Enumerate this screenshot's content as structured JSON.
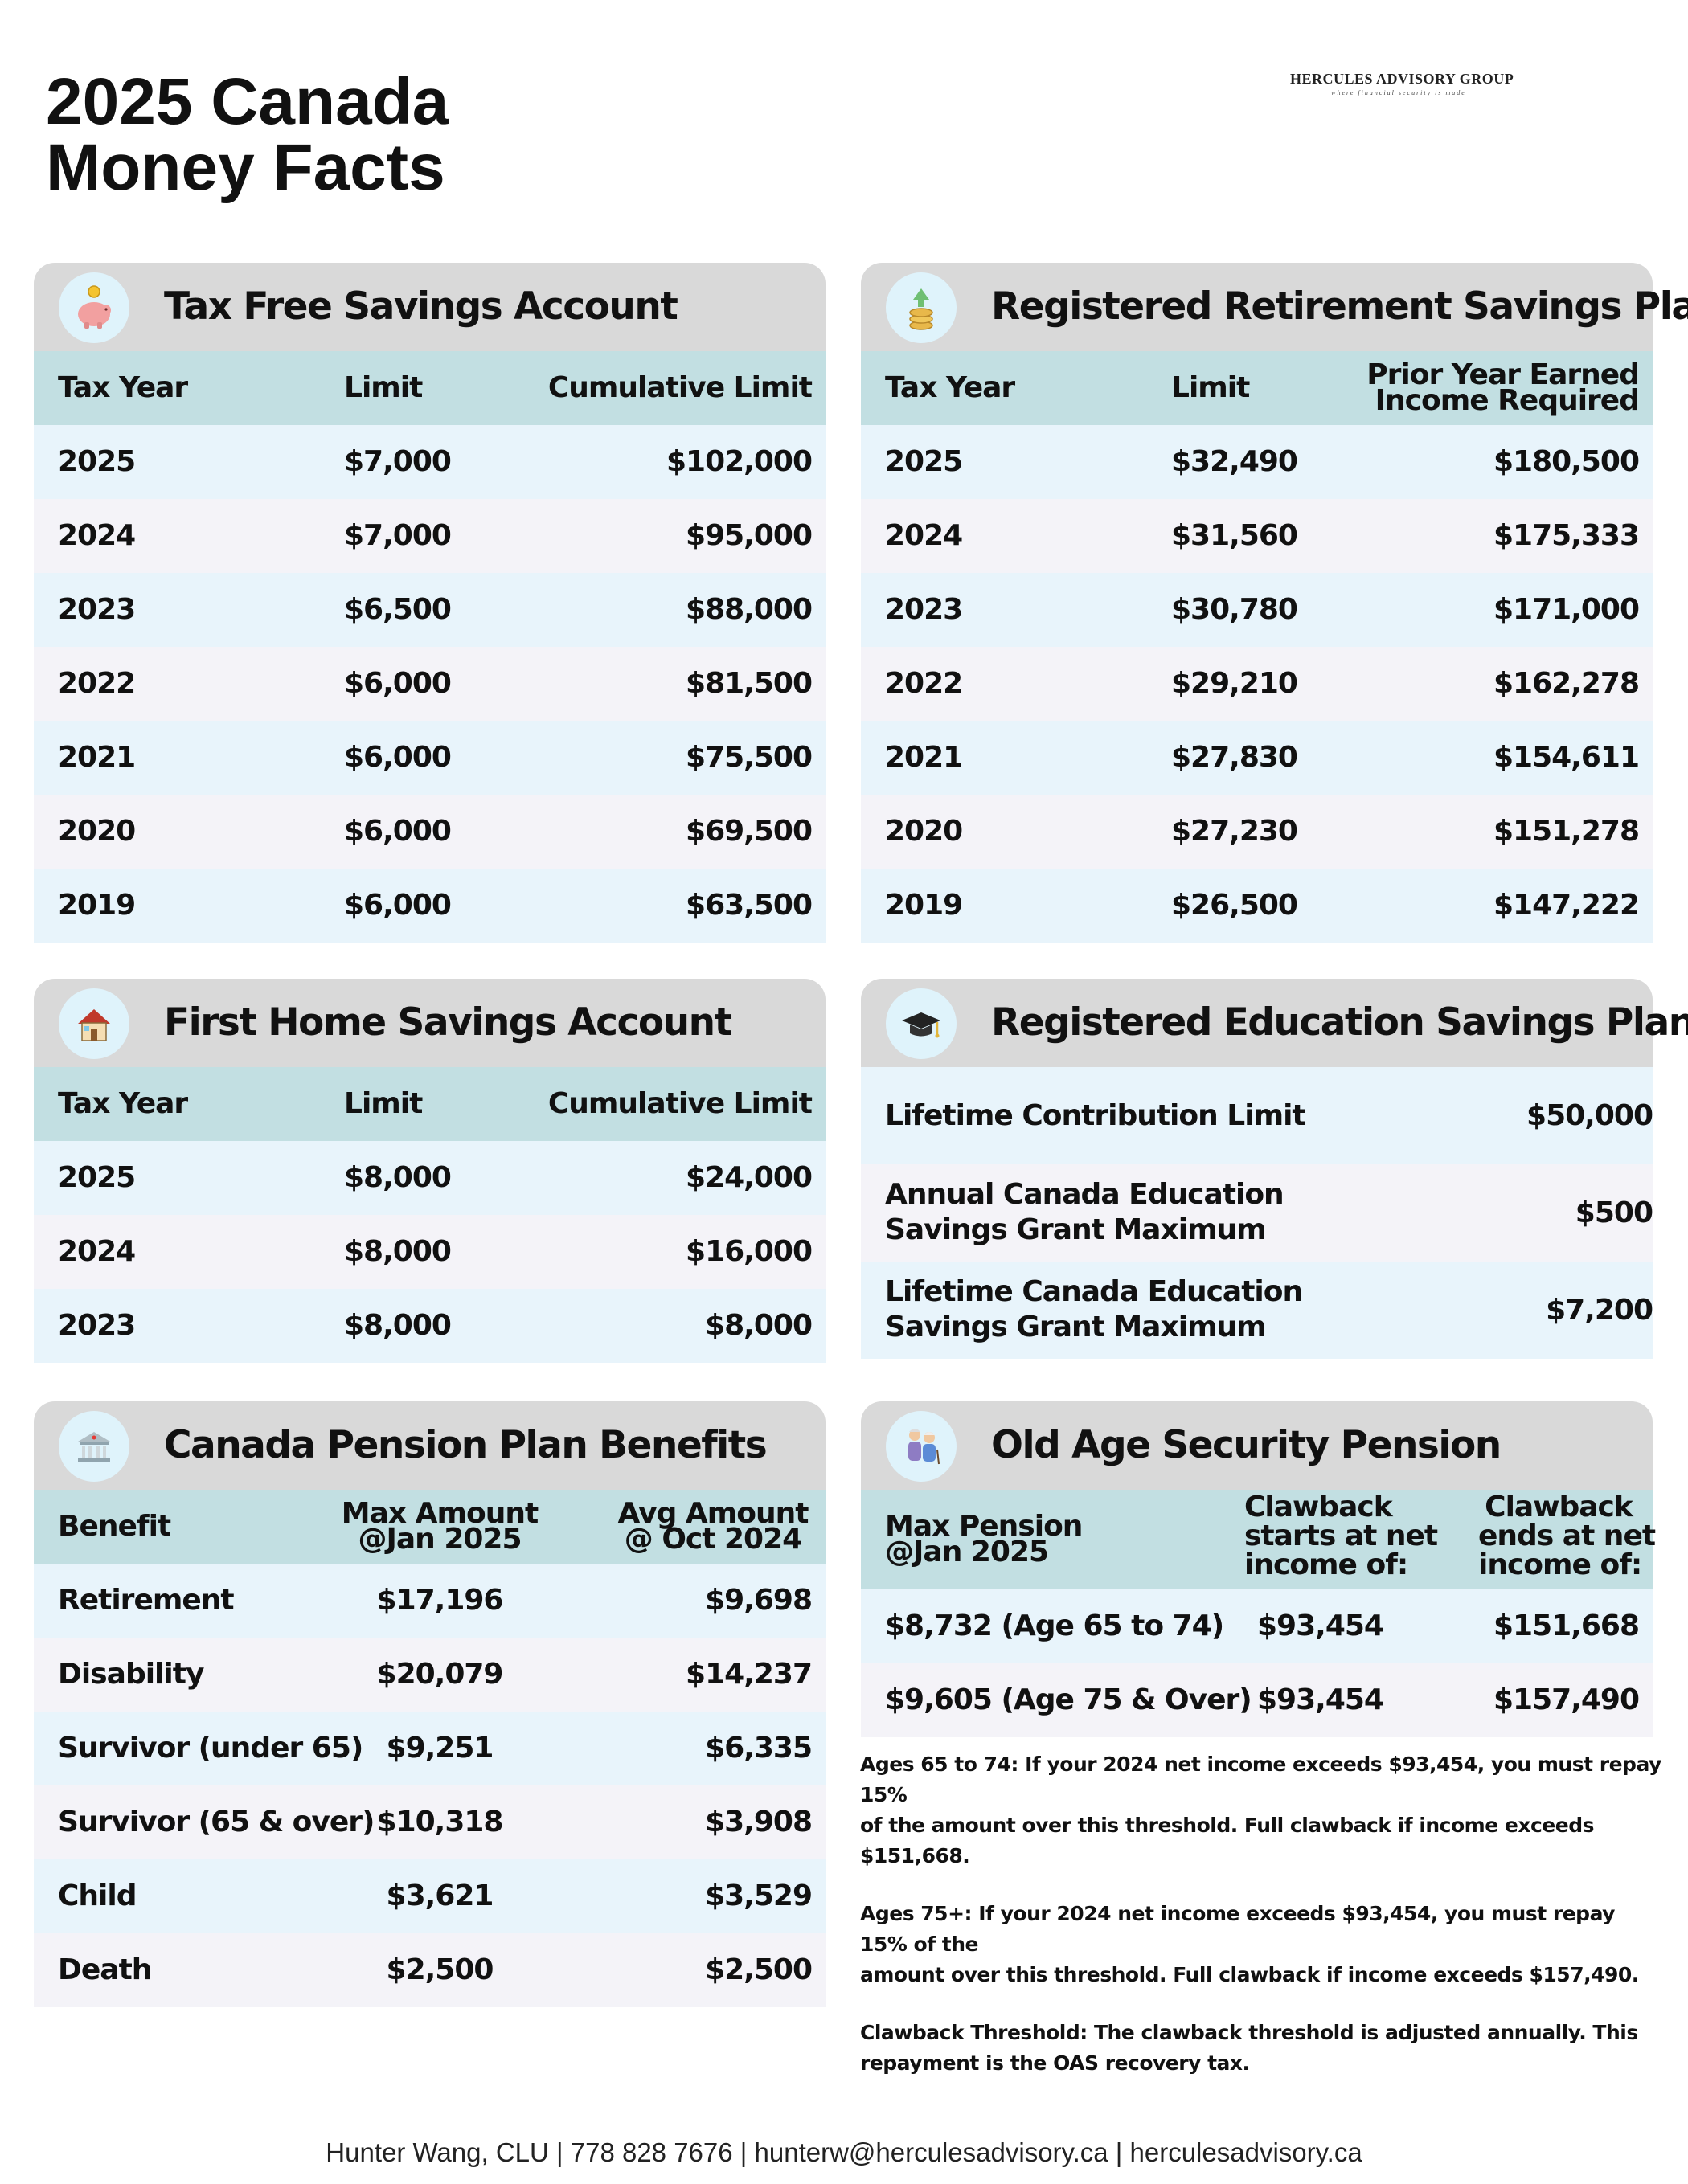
{
  "title": {
    "line1": "2025 Canada",
    "line2": "Money Facts"
  },
  "brand": {
    "name": "HERCULES ADVISORY GROUP",
    "tagline": "where financial security is made"
  },
  "tfsa": {
    "title": "Tax Free Savings Account",
    "icon": "piggy-bank-icon",
    "columns": [
      "Tax Year",
      "Limit",
      "Cumulative Limit"
    ],
    "rows": [
      [
        "2025",
        "$7,000",
        "$102,000"
      ],
      [
        "2024",
        "$7,000",
        "$95,000"
      ],
      [
        "2023",
        "$6,500",
        "$88,000"
      ],
      [
        "2022",
        "$6,000",
        "$81,500"
      ],
      [
        "2021",
        "$6,000",
        "$75,500"
      ],
      [
        "2020",
        "$6,000",
        "$69,500"
      ],
      [
        "2019",
        "$6,000",
        "$63,500"
      ]
    ]
  },
  "rrsp": {
    "title": "Registered Retirement Savings Plan",
    "icon": "coin-stack-icon",
    "columns": [
      "Tax Year",
      "Limit",
      "Prior Year Earned",
      "Income Required"
    ],
    "rows": [
      [
        "2025",
        "$32,490",
        "$180,500"
      ],
      [
        "2024",
        "$31,560",
        "$175,333"
      ],
      [
        "2023",
        "$30,780",
        "$171,000"
      ],
      [
        "2022",
        "$29,210",
        "$162,278"
      ],
      [
        "2021",
        "$27,830",
        "$154,611"
      ],
      [
        "2020",
        "$27,230",
        "$151,278"
      ],
      [
        "2019",
        "$26,500",
        "$147,222"
      ]
    ]
  },
  "fhsa": {
    "title": "First Home Savings Account",
    "icon": "house-icon",
    "columns": [
      "Tax Year",
      "Limit",
      "Cumulative Limit"
    ],
    "rows": [
      [
        "2025",
        "$8,000",
        "$24,000"
      ],
      [
        "2024",
        "$8,000",
        "$16,000"
      ],
      [
        "2023",
        "$8,000",
        "$8,000"
      ]
    ]
  },
  "resp": {
    "title": "Registered Education Savings Plan",
    "icon": "graduation-cap-icon",
    "rows": [
      {
        "label1": "Lifetime Contribution Limit",
        "label2": "",
        "value": "$50,000"
      },
      {
        "label1": "Annual Canada Education",
        "label2": "Savings Grant Maximum",
        "value": "$500"
      },
      {
        "label1": "Lifetime Canada Education",
        "label2": "Savings Grant Maximum",
        "value": "$7,200"
      }
    ]
  },
  "cpp": {
    "title": "Canada Pension Plan Benefits",
    "icon": "government-building-icon",
    "columns": {
      "benefit": "Benefit",
      "max1": "Max Amount",
      "max2": "@Jan 2025",
      "avg1": "Avg Amount",
      "avg2": "@ Oct 2024"
    },
    "rows": [
      [
        "Retirement",
        "$17,196",
        "$9,698"
      ],
      [
        "Disability",
        "$20,079",
        "$14,237"
      ],
      [
        "Survivor (under 65)",
        "$9,251",
        "$6,335"
      ],
      [
        "Survivor (65 & over)",
        "$10,318",
        "$3,908"
      ],
      [
        "Child",
        "$3,621",
        "$3,529"
      ],
      [
        "Death",
        "$2,500",
        "$2,500"
      ]
    ]
  },
  "oas": {
    "title": "Old Age Security Pension",
    "icon": "elderly-couple-icon",
    "columns": {
      "max1": "Max Pension",
      "max2": "@Jan 2025",
      "start1": "Clawback",
      "start2": "starts at net",
      "start3": "income of:",
      "end1": "Clawback",
      "end2": "ends at net",
      "end3": "income of:"
    },
    "rows": [
      [
        "$8,732 (Age 65 to 74)",
        "$93,454",
        "$151,668"
      ],
      [
        "$9,605 (Age 75 & Over)",
        "$93,454",
        "$157,490"
      ]
    ],
    "notes": [
      {
        "line1": "Ages 65 to 74: If your 2024 net income exceeds $93,454, you must repay 15%",
        "line2": "of the amount over this threshold. Full clawback if income exceeds $151,668."
      },
      {
        "line1": "Ages 75+: If your 2024 net income exceeds $93,454, you must repay 15% of the",
        "line2": "amount over this threshold. Full clawback if income exceeds $157,490."
      },
      {
        "line1": "Clawback Threshold: The clawback threshold is adjusted annually. This",
        "line2": "repayment is the OAS recovery tax."
      }
    ]
  },
  "footer": "Hunter Wang, CLU | 778 828 7676 | hunterw@herculesadvisory.ca | herculesadvisory.ca",
  "colors": {
    "header_bg": "#d9d9d9",
    "column_header_bg": "#c2dfe2",
    "row_odd_bg": "#e8f4fb",
    "row_even_bg": "#f4f3f8",
    "icon_circle_bg": "#dff3fb"
  }
}
